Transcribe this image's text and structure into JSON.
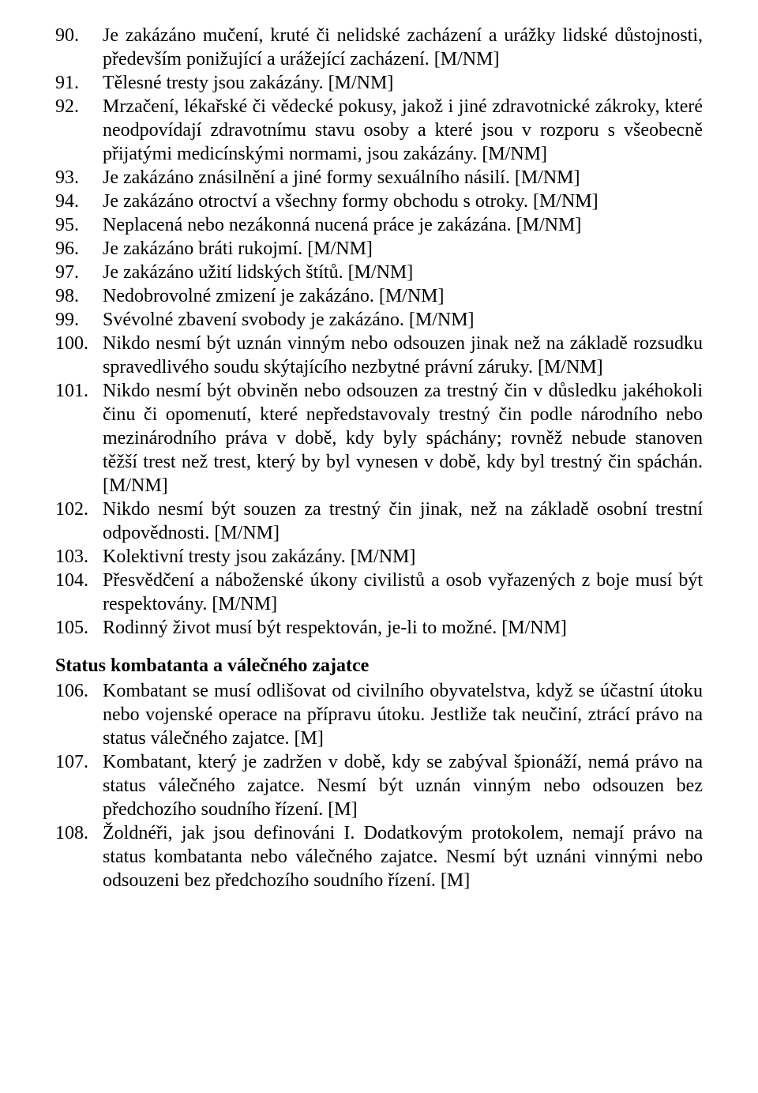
{
  "items1": [
    {
      "num": "90.",
      "text": "Je zakázáno mučení, kruté či nelidské zacházení a urážky lidské důstojnosti, především ponižující a urážející zacházení. [M/NM]"
    },
    {
      "num": "91.",
      "text": "Tělesné tresty jsou zakázány. [M/NM]"
    },
    {
      "num": "92.",
      "text": "Mrzačení, lékařské či vědecké pokusy, jakož i jiné zdravotnické zákroky, které neodpovídají zdravotnímu stavu osoby a které jsou v rozporu s všeobecně přijatými medicínskými normami, jsou zakázány. [M/NM]"
    },
    {
      "num": "93.",
      "text": "Je zakázáno znásilnění a jiné formy sexuálního násilí. [M/NM]"
    },
    {
      "num": "94.",
      "text": "Je zakázáno otroctví a všechny formy obchodu s otroky. [M/NM]"
    },
    {
      "num": "95.",
      "text": "Neplacená nebo nezákonná nucená práce je zakázána. [M/NM]"
    },
    {
      "num": "96.",
      "text": "Je zakázáno bráti rukojmí. [M/NM]"
    },
    {
      "num": "97.",
      "text": "Je zakázáno užití lidských štítů. [M/NM]"
    },
    {
      "num": "98.",
      "text": "Nedobrovolné zmizení je zakázáno. [M/NM]"
    },
    {
      "num": "99.",
      "text": "Svévolné zbavení svobody je zakázáno. [M/NM]"
    },
    {
      "num": "100.",
      "text": "Nikdo nesmí být uznán vinným nebo odsouzen jinak než na základě rozsudku spravedlivého soudu skýtajícího nezbytné právní záruky. [M/NM]"
    },
    {
      "num": "101.",
      "text": "Nikdo nesmí být obviněn nebo odsouzen za trestný čin v důsledku jakéhokoli činu či opomenutí, které nepředstavovaly trestný čin podle národního nebo mezinárodního práva v době, kdy byly spáchány; rovněž nebude stanoven těžší trest než trest, který by byl vynesen v době, kdy byl trestný čin spáchán. [M/NM]"
    },
    {
      "num": "102.",
      "text": "Nikdo nesmí být souzen za trestný čin jinak, než na základě osobní trestní odpovědnosti. [M/NM]"
    },
    {
      "num": "103.",
      "text": "Kolektivní tresty jsou zakázány. [M/NM]"
    },
    {
      "num": "104.",
      "text": "Přesvědčení a náboženské úkony civilistů a osob vyřazených z boje musí být respektovány. [M/NM]"
    },
    {
      "num": "105.",
      "text": "Rodinný život musí být respektován, je-li to možné. [M/NM]"
    }
  ],
  "heading": "Status kombatanta a válečného zajatce",
  "items2": [
    {
      "num": "106.",
      "text": "Kombatant se musí odlišovat od civilního obyvatelstva, když se účastní útoku nebo vojenské operace na přípravu útoku. Jestliže tak neučiní, ztrácí právo na status válečného zajatce. [M]"
    },
    {
      "num": "107.",
      "text": "Kombatant, který je zadržen v době, kdy se zabýval špionáží, nemá právo na status válečného zajatce. Nesmí být uznán vinným nebo odsouzen bez předchozího soudního řízení. [M]"
    },
    {
      "num": "108.",
      "text": "Žoldnéři, jak jsou definováni I. Dodatkovým protokolem, nemají právo na status kombatanta nebo válečného zajatce. Nesmí být uznáni vinnými nebo odsouzeni bez předchozího soudního řízení. [M]"
    }
  ]
}
